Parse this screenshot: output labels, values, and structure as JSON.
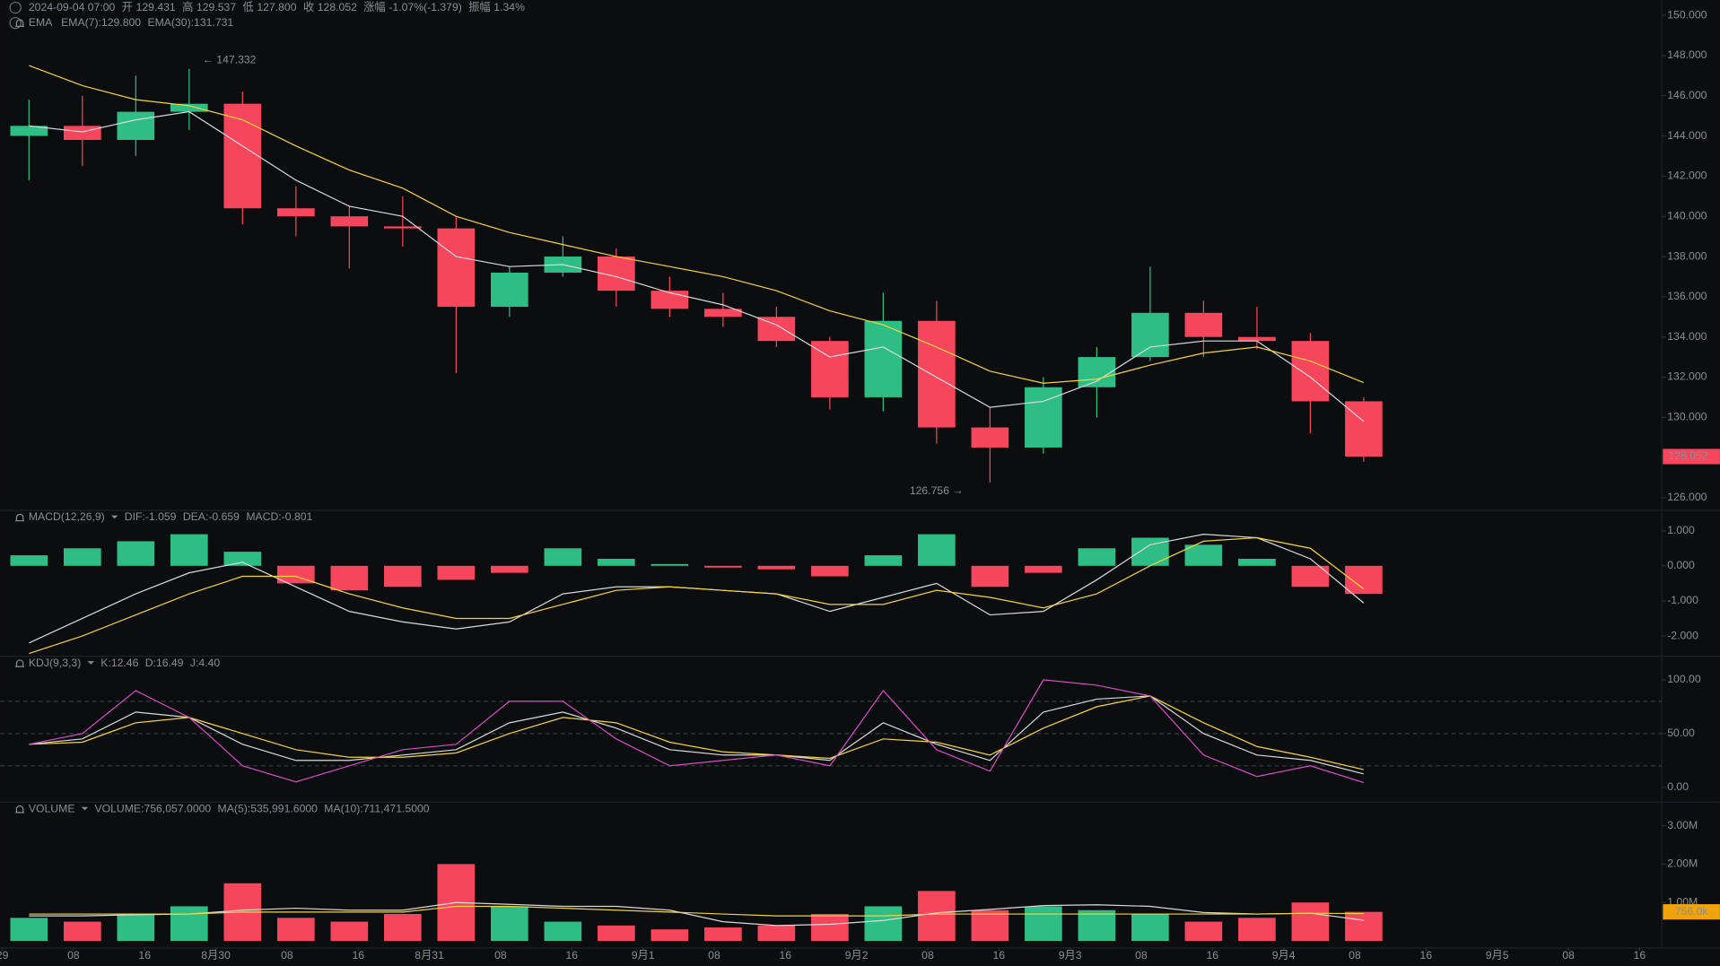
{
  "header": {
    "title": "2024-09-04 07:00",
    "info": [
      {
        "label": "开",
        "value": "129.431"
      },
      {
        "label": "高",
        "value": "129.537"
      },
      {
        "label": "低",
        "value": "127.800"
      },
      {
        "label": "收",
        "value": "128.052"
      },
      {
        "label": "涨幅",
        "value": "-1.07%(-1.379)"
      },
      {
        "label": "振幅",
        "value": "1.34%"
      }
    ]
  },
  "chart_data": [
    {
      "type": "candlestick",
      "legend_title": "EMA",
      "x": [
        0,
        6,
        12,
        18,
        24,
        30,
        36,
        42,
        48,
        54,
        60,
        66,
        72,
        78,
        84,
        90,
        96,
        102,
        108,
        114,
        120,
        126,
        132,
        138,
        144,
        150
      ],
      "xlim": [
        -0.25,
        186.5
      ],
      "xticks": [
        {
          "value": 0,
          "label": "29"
        },
        {
          "value": 8,
          "label": "08"
        },
        {
          "value": 16,
          "label": "16"
        },
        {
          "value": 24,
          "label": "8月30"
        },
        {
          "value": 32,
          "label": "08"
        },
        {
          "value": 40,
          "label": "16"
        },
        {
          "value": 48,
          "label": "8月31"
        },
        {
          "value": 56,
          "label": "08"
        },
        {
          "value": 64,
          "label": "16"
        },
        {
          "value": 72,
          "label": "9月1"
        },
        {
          "value": 80,
          "label": "08"
        },
        {
          "value": 88,
          "label": "16"
        },
        {
          "value": 96,
          "label": "9月2"
        },
        {
          "value": 104,
          "label": "08"
        },
        {
          "value": 112,
          "label": "16"
        },
        {
          "value": 120,
          "label": "9月3"
        },
        {
          "value": 128,
          "label": "08"
        },
        {
          "value": 136,
          "label": "16"
        },
        {
          "value": 144,
          "label": "9月4"
        },
        {
          "value": 152,
          "label": "08"
        },
        {
          "value": 160,
          "label": "16"
        },
        {
          "value": 168,
          "label": "9月5"
        },
        {
          "value": 176,
          "label": "08"
        },
        {
          "value": 184,
          "label": "16"
        }
      ],
      "open": [
        144,
        144.5,
        143.8,
        145.2,
        145.6,
        140.4,
        140,
        139.5,
        139.4,
        135.5,
        137.2,
        138,
        136.3,
        135.4,
        135,
        133.8,
        131,
        134.8,
        129.5,
        128.5,
        131.5,
        133,
        135.2,
        134,
        133.8,
        130.8
      ],
      "high": [
        145.8,
        146,
        147,
        147.332,
        146.2,
        141.5,
        140.5,
        141,
        140,
        137.5,
        139,
        138.4,
        137,
        136.2,
        135.5,
        134,
        136.2,
        135.8,
        130.5,
        132,
        133.5,
        137.5,
        135.8,
        135.5,
        134.2,
        131
      ],
      "low": [
        141.8,
        142.5,
        143,
        144.3,
        139.6,
        139,
        137.4,
        138.5,
        132.2,
        135,
        137,
        135.5,
        135,
        134.5,
        133.5,
        130.4,
        130.3,
        128.7,
        126.756,
        128.2,
        130,
        132.8,
        133,
        133.4,
        129.2,
        127.8
      ],
      "close": [
        144.5,
        143.8,
        145.2,
        145.6,
        140.4,
        140,
        139.5,
        139.4,
        135.5,
        137.2,
        138,
        136.3,
        135.4,
        135,
        133.8,
        131,
        134.8,
        129.5,
        128.5,
        131.5,
        133,
        135.2,
        134,
        133.8,
        130.8,
        128.052
      ],
      "up_color": "#2ebd85",
      "down_color": "#f6465d",
      "ylim": [
        125.4,
        150.76
      ],
      "yticks": [
        {
          "value": 126,
          "label": "126.000"
        },
        {
          "value": 128,
          "label": "128.000"
        },
        {
          "value": 130,
          "label": "130.000"
        },
        {
          "value": 132,
          "label": "132.000"
        },
        {
          "value": 134,
          "label": "134.000"
        },
        {
          "value": 136,
          "label": "136.000"
        },
        {
          "value": 138,
          "label": "138.000"
        },
        {
          "value": 140,
          "label": "140.000"
        },
        {
          "value": 142,
          "label": "142.000"
        },
        {
          "value": 144,
          "label": "144.000"
        },
        {
          "value": 146,
          "label": "146.000"
        },
        {
          "value": 148,
          "label": "148.000"
        },
        {
          "value": 150,
          "label": "150.000"
        }
      ],
      "series": [
        {
          "name": "EMA(7):129.800",
          "color": "#d9d9d9",
          "values": [
            144.5,
            144.2,
            144.8,
            145.2,
            143.5,
            141.8,
            140.5,
            140,
            138,
            137.5,
            137.6,
            137,
            136.2,
            135.6,
            134.6,
            133,
            133.5,
            132,
            130.5,
            130.8,
            131.8,
            133.5,
            133.8,
            133.8,
            132,
            129.8
          ]
        },
        {
          "name": "EMA(30):131.731",
          "color": "#f0d53c",
          "values": [
            147.5,
            146.5,
            145.8,
            145.5,
            144.8,
            143.5,
            142.3,
            141.4,
            140,
            139.2,
            138.6,
            138,
            137.5,
            137,
            136.3,
            135.3,
            134.6,
            133.5,
            132.3,
            131.7,
            131.9,
            132.6,
            133.2,
            133.5,
            132.8,
            131.731
          ]
        }
      ],
      "annotations": [
        {
          "text": "← 147.332",
          "x": 22.5,
          "y": 147.332
        },
        {
          "text": "126.756 →",
          "x": 108,
          "y": 126.756
        }
      ],
      "last_price": {
        "value": 128.052,
        "label": "128.052"
      }
    },
    {
      "type": "macd",
      "legend_title": "MACD(12,26,9)",
      "ylim": [
        -2.53,
        1.5625
      ],
      "yticks": [
        {
          "value": 1,
          "label": "1.000"
        },
        {
          "value": 0,
          "label": "0.000"
        },
        {
          "value": -1,
          "label": "-1.000"
        },
        {
          "value": -2,
          "label": "-2.000"
        }
      ],
      "series": [
        {
          "name": "DIF:-1.059",
          "color": "#d9d9d9",
          "values": [
            -2.2,
            -1.5,
            -0.8,
            -0.2,
            0.1,
            -0.6,
            -1.3,
            -1.6,
            -1.8,
            -1.6,
            -0.8,
            -0.6,
            -0.6,
            -0.7,
            -0.8,
            -1.3,
            -0.9,
            -0.5,
            -1.4,
            -1.3,
            -0.4,
            0.6,
            0.9,
            0.8,
            0.2,
            -1.059
          ]
        },
        {
          "name": "DEA:-0.659",
          "color": "#f0d53c",
          "values": [
            -2.5,
            -2,
            -1.4,
            -0.8,
            -0.3,
            -0.3,
            -0.8,
            -1.2,
            -1.5,
            -1.5,
            -1.1,
            -0.7,
            -0.6,
            -0.7,
            -0.8,
            -1.1,
            -1.1,
            -0.7,
            -0.9,
            -1.2,
            -0.8,
            0,
            0.7,
            0.8,
            0.5,
            -0.659
          ]
        },
        {
          "name": "MACD:-0.801",
          "color": "#d24ec2",
          "values": [
            0.3,
            0.5,
            0.7,
            0.9,
            0.4,
            -0.5,
            -0.7,
            -0.6,
            -0.4,
            -0.2,
            0.5,
            0.2,
            0.05,
            -0.05,
            -0.1,
            -0.3,
            0.3,
            0.9,
            -0.6,
            -0.2,
            0.5,
            0.8,
            0.6,
            0.2,
            -0.6,
            -0.801
          ]
        }
      ]
    },
    {
      "type": "kdj",
      "legend_title": "KDJ(9,3,3)",
      "ylim": [
        -12.2,
        121.4
      ],
      "yticks": [
        {
          "value": 100,
          "label": "100.00"
        },
        {
          "value": 50,
          "label": "50.00"
        },
        {
          "value": 0,
          "label": "0.00"
        }
      ],
      "dashed_levels": [
        20,
        50,
        80
      ],
      "series": [
        {
          "name": "K:12.46",
          "color": "#d9d9d9",
          "values": [
            40,
            45,
            70,
            65,
            40,
            25,
            25,
            30,
            35,
            60,
            70,
            55,
            35,
            30,
            30,
            25,
            60,
            40,
            25,
            70,
            82,
            85,
            50,
            30,
            25,
            12.46
          ]
        },
        {
          "name": "D:16.49",
          "color": "#f0d53c",
          "values": [
            40,
            42,
            60,
            65,
            50,
            35,
            28,
            28,
            32,
            50,
            65,
            60,
            42,
            33,
            30,
            27,
            45,
            42,
            30,
            55,
            75,
            85,
            60,
            38,
            28,
            16.49
          ]
        },
        {
          "name": "J:4.40",
          "color": "#d24ec2",
          "values": [
            40,
            50,
            90,
            65,
            20,
            5,
            20,
            35,
            40,
            80,
            80,
            45,
            20,
            25,
            30,
            20,
            90,
            35,
            15,
            100,
            95,
            85,
            30,
            10,
            20,
            4.4
          ]
        }
      ]
    },
    {
      "type": "volume",
      "legend_title": "VOLUME",
      "ylim": [
        -140000,
        3600000
      ],
      "yticks": [
        {
          "value": 3000000,
          "label": "3.00M"
        },
        {
          "value": 2000000,
          "label": "2.00M"
        },
        {
          "value": 1000000,
          "label": "1.00M"
        }
      ],
      "series": [
        {
          "name": "VOLUME:756,057.0000",
          "values": [
            600000,
            500000,
            700000,
            900000,
            1500000,
            600000,
            500000,
            700000,
            2000000,
            900000,
            500000,
            400000,
            300000,
            350000,
            400000,
            700000,
            900000,
            1300000,
            800000,
            900000,
            800000,
            700000,
            500000,
            600000,
            1000000,
            756057
          ]
        },
        {
          "name": "MA(5):535,991.6000",
          "color": "#d9d9d9",
          "values": [
            650000,
            650000,
            680000,
            700000,
            800000,
            850000,
            800000,
            800000,
            1000000,
            950000,
            900000,
            900000,
            800000,
            500000,
            400000,
            430000,
            530000,
            730000,
            820000,
            920000,
            940000,
            900000,
            740000,
            700000,
            720000,
            535991.6
          ]
        },
        {
          "name": "MA(10):711,471.5000",
          "color": "#f0d53c",
          "values": [
            700000,
            700000,
            700000,
            700000,
            750000,
            750000,
            750000,
            750000,
            900000,
            900000,
            850000,
            800000,
            750000,
            700000,
            650000,
            650000,
            650000,
            700000,
            700000,
            700000,
            700000,
            700000,
            700000,
            700000,
            720000,
            711471.5
          ]
        }
      ],
      "last_value": {
        "value": 756000,
        "label": "756.0k"
      }
    }
  ]
}
